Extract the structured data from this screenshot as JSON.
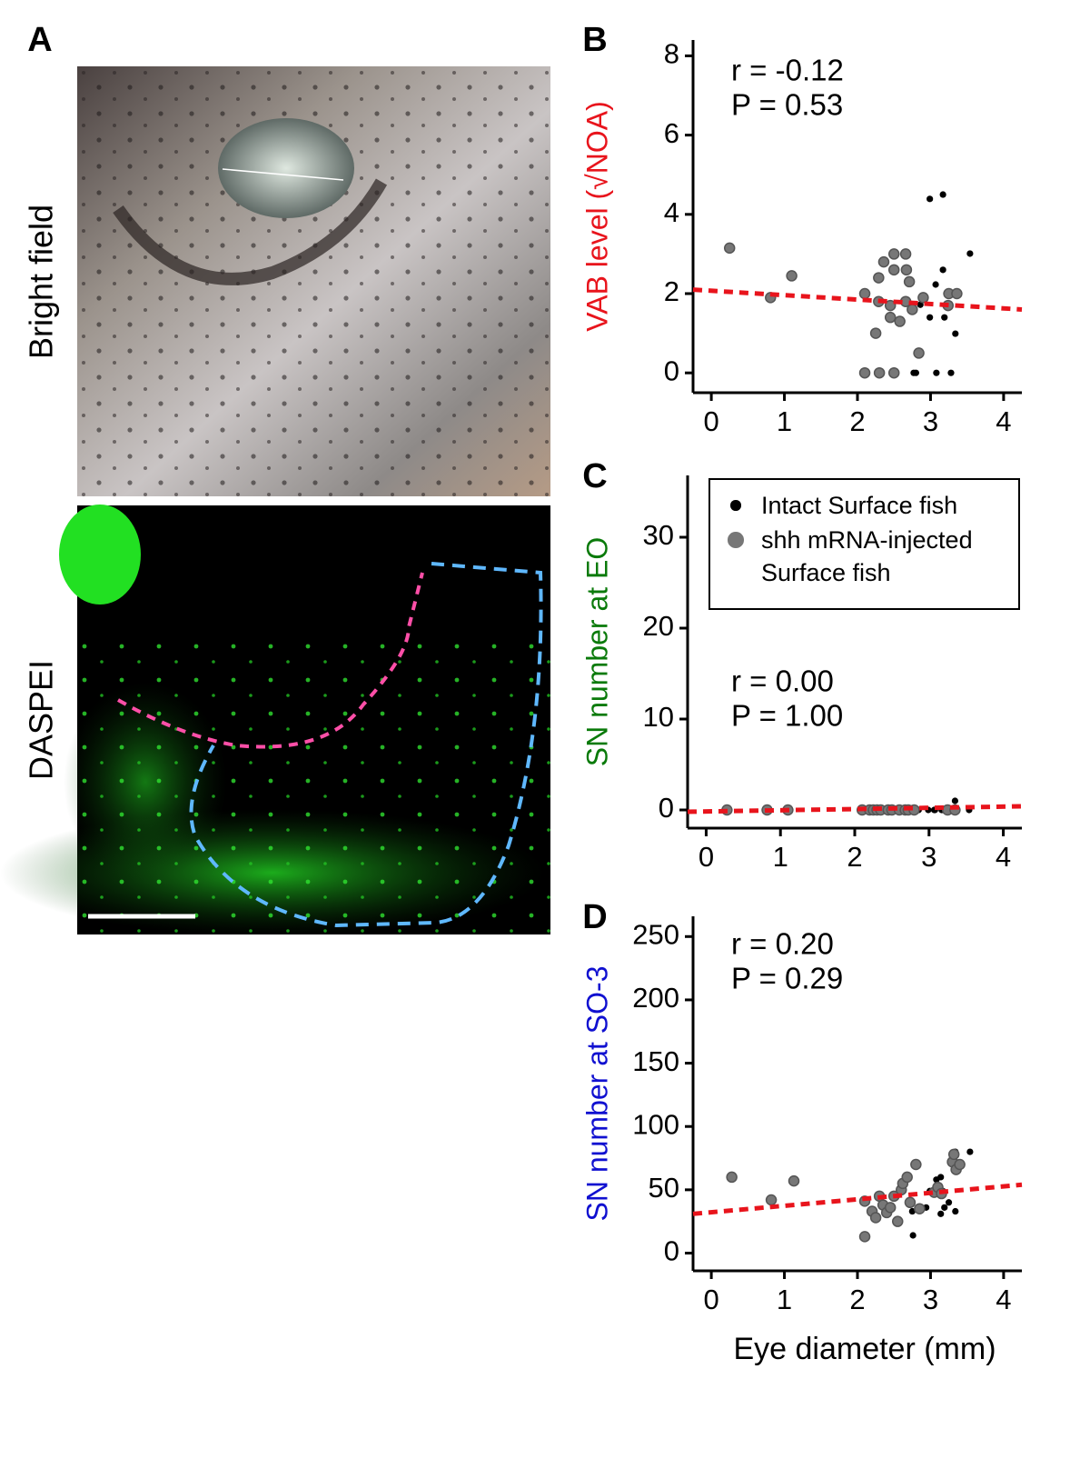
{
  "panel_a": {
    "label": "A",
    "top_label": "Bright field",
    "bottom_label": "DASPEI"
  },
  "chart_data": [
    {
      "type": "scatter",
      "panel": "B",
      "ylabel": "VAB level (√NOA)",
      "ylabel_color": "#e8141c",
      "annotations": [
        "r = -0.12",
        "P = 0.53"
      ],
      "xlim": [
        -0.25,
        4.25
      ],
      "ylim": [
        -0.5,
        8.4
      ],
      "xticks": [
        0,
        1,
        2,
        3,
        4
      ],
      "yticks": [
        0,
        2,
        4,
        6,
        8
      ],
      "series": [
        {
          "color": "#000000",
          "x": [
            2.77,
            2.8,
            2.86,
            2.99,
            2.99,
            3.07,
            3.08,
            3.17,
            3.17,
            3.19,
            3.28,
            3.34,
            3.34,
            3.54
          ],
          "values": [
            0,
            0,
            1.72,
            4.39,
            1.4,
            2.23,
            0,
            4.5,
            2.6,
            1.4,
            0,
            2.02,
            0.99,
            3.01
          ]
        },
        {
          "color": "#777777",
          "x": [
            0.25,
            0.81,
            1.1,
            2.1,
            2.1,
            2.25,
            2.29,
            2.29,
            2.36,
            2.5,
            2.5,
            2.5,
            2.66,
            2.67,
            2.66,
            2.71,
            2.45,
            2.84,
            2.75,
            2.3,
            2.45,
            2.58,
            3.25,
            3.36,
            3.24,
            2.9
          ],
          "values": [
            3.15,
            1.9,
            2.45,
            2.0,
            0,
            1.0,
            2.4,
            1.8,
            2.8,
            3.0,
            2.6,
            0,
            3.0,
            2.6,
            1.8,
            2.3,
            1.4,
            0.5,
            1.6,
            0,
            1.7,
            1.3,
            2.0,
            2.0,
            1.7,
            1.9
          ]
        }
      ],
      "trend": {
        "color": "#e8141c",
        "x": [
          -0.25,
          4.25
        ],
        "values": [
          2.1,
          1.6
        ]
      }
    },
    {
      "type": "scatter",
      "panel": "C",
      "ylabel": "SN number at EO",
      "ylabel_color": "#0a7a0a",
      "annotations": [
        "r = 0.00",
        "P = 1.00"
      ],
      "legend": "top-right",
      "xlim": [
        -0.25,
        4.25
      ],
      "ylim": [
        -2,
        36.8
      ],
      "xticks": [
        0,
        1,
        2,
        3,
        4
      ],
      "yticks": [
        0,
        10,
        20,
        30
      ],
      "series": [
        {
          "name": "Intact Surface fish",
          "color": "#000000",
          "x": [
            2.8,
            2.86,
            2.99,
            3.07,
            3.08,
            3.17,
            3.19,
            3.28,
            3.34,
            3.35,
            3.54
          ],
          "values": [
            0,
            0,
            0,
            0,
            0,
            0,
            0,
            0,
            0,
            1,
            0
          ]
        },
        {
          "name": "shh mRNA-injected Surface fish",
          "color": "#777777",
          "x": [
            0.28,
            0.82,
            1.1,
            2.1,
            2.2,
            2.25,
            2.3,
            2.35,
            2.45,
            2.5,
            2.6,
            2.68,
            2.72,
            2.8,
            3.25,
            3.35
          ],
          "values": [
            0,
            0,
            0,
            0,
            0,
            0,
            0,
            0,
            0,
            0,
            0,
            0,
            0,
            0,
            0,
            0
          ]
        }
      ],
      "trend": {
        "color": "#e8141c",
        "x": [
          -0.25,
          4.25
        ],
        "values": [
          -0.2,
          0.4
        ]
      }
    },
    {
      "type": "scatter",
      "panel": "D",
      "ylabel": "SN number at SO-3",
      "ylabel_color": "#1010d0",
      "xlabel": "Eye diameter (mm)",
      "annotations": [
        "r = 0.20",
        "P = 0.29"
      ],
      "xlim": [
        -0.25,
        4.25
      ],
      "ylim": [
        -14,
        266
      ],
      "xticks": [
        0,
        1,
        2,
        3,
        4
      ],
      "yticks": [
        0,
        50,
        100,
        150,
        200,
        250
      ],
      "series": [
        {
          "color": "#000000",
          "x": [
            3.34,
            3.54,
            3.14,
            3.08,
            3.17,
            2.99,
            3.04,
            3.25,
            3.19,
            3.34,
            3.14,
            2.76,
            2.75,
            2.94
          ],
          "values": [
            80,
            80,
            60,
            58,
            49,
            49,
            47,
            40,
            36,
            33,
            31,
            14,
            33,
            36
          ]
        },
        {
          "color": "#777777",
          "x": [
            0.28,
            0.82,
            1.13,
            2.1,
            2.1,
            2.2,
            2.25,
            2.3,
            2.35,
            2.4,
            2.45,
            2.5,
            2.55,
            2.6,
            2.62,
            2.68,
            2.72,
            2.8,
            2.85,
            3.05,
            3.1,
            3.15,
            3.3,
            3.35,
            3.4,
            3.32
          ],
          "values": [
            60,
            42,
            57,
            13,
            41,
            33,
            28,
            45,
            38,
            32,
            36,
            45,
            25,
            50,
            55,
            60,
            40,
            70,
            35,
            48,
            52,
            47,
            72,
            66,
            70,
            78
          ]
        }
      ],
      "trend": {
        "color": "#e8141c",
        "x": [
          -0.25,
          4.25
        ],
        "values": [
          31,
          54
        ]
      }
    }
  ]
}
